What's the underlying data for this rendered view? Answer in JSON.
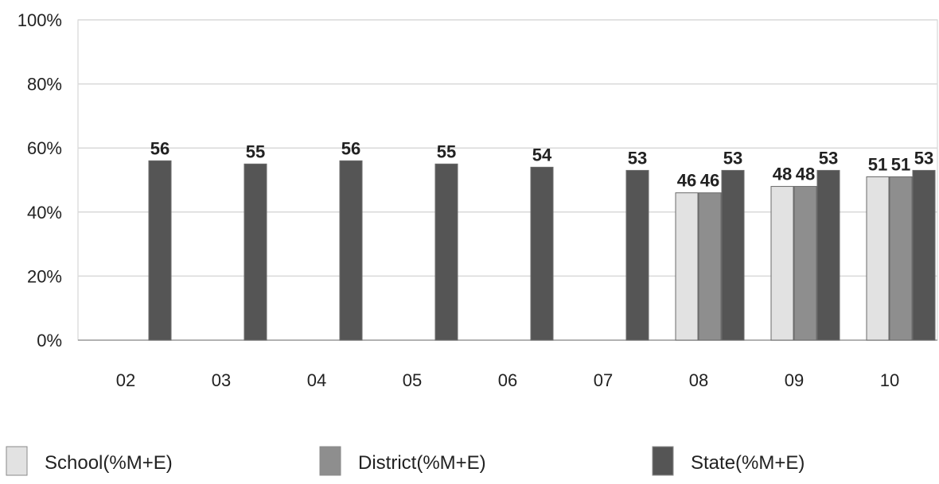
{
  "chart_data": {
    "type": "bar",
    "categories": [
      "02",
      "03",
      "04",
      "05",
      "06",
      "07",
      "08",
      "09",
      "10"
    ],
    "series": [
      {
        "name": "School(%M+E)",
        "values": [
          null,
          null,
          null,
          null,
          null,
          null,
          46,
          48,
          51
        ],
        "color": "#e2e2e2"
      },
      {
        "name": "District(%M+E)",
        "values": [
          null,
          null,
          null,
          null,
          null,
          null,
          46,
          48,
          51
        ],
        "color": "#8e8e8e"
      },
      {
        "name": "State(%M+E)",
        "values": [
          56,
          55,
          56,
          55,
          54,
          53,
          53,
          53,
          53
        ],
        "color": "#555555"
      }
    ],
    "yticks": [
      "0%",
      "20%",
      "40%",
      "60%",
      "80%",
      "100%"
    ],
    "ylim": [
      0,
      100
    ],
    "grid": true,
    "legend": "bottom"
  }
}
